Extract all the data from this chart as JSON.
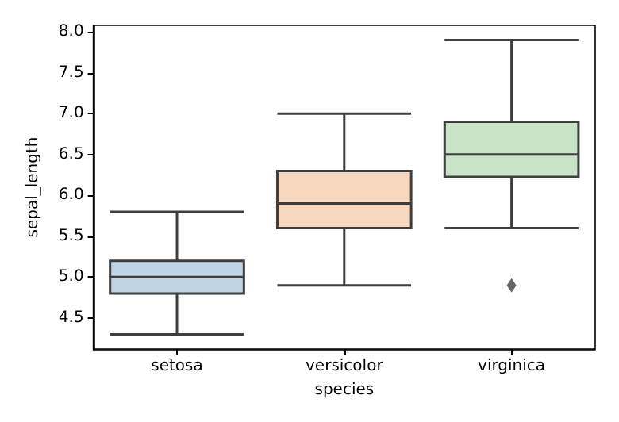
{
  "chart_data": {
    "type": "box",
    "xlabel": "species",
    "ylabel": "sepal_length",
    "categories": [
      "setosa",
      "versicolor",
      "virginica"
    ],
    "boxes": [
      {
        "low": 4.3,
        "q1": 4.8,
        "median": 5.0,
        "q3": 5.2,
        "high": 5.8
      },
      {
        "low": 4.9,
        "q1": 5.6,
        "median": 5.9,
        "q3": 6.3,
        "high": 7.0
      },
      {
        "low": 5.6,
        "q1": 6.225,
        "median": 6.5,
        "q3": 6.9,
        "high": 7.9,
        "outliers": [
          4.9
        ]
      }
    ],
    "colors": [
      "#bfd4e5",
      "#f7d7bd",
      "#c8e3c5"
    ],
    "marker": "diamond",
    "ylim": [
      4.12,
      8.08
    ],
    "yticks": [
      {
        "value": 4.5,
        "label": "4.5"
      },
      {
        "value": 5,
        "label": "5.0"
      },
      {
        "value": 5.5,
        "label": "5.5"
      },
      {
        "value": 6,
        "label": "6.0"
      },
      {
        "value": 6.5,
        "label": "6.5"
      },
      {
        "value": 7,
        "label": "7.0"
      },
      {
        "value": 7.5,
        "label": "7.5"
      },
      {
        "value": 8,
        "label": "8.0"
      }
    ],
    "grid": false
  }
}
